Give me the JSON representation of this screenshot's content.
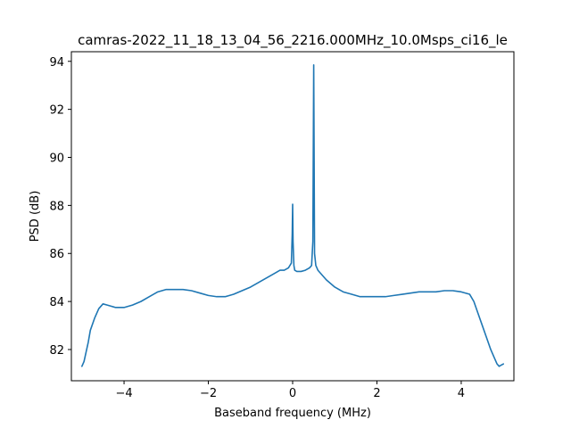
{
  "chart_data": {
    "type": "line",
    "title": "camras-2022_11_18_13_04_56_2216.000MHz_10.0Msps_ci16_le",
    "xlabel": "Baseband frequency (MHz)",
    "ylabel": "PSD (dB)",
    "xlim": [
      -5.25,
      5.25
    ],
    "ylim": [
      80.7,
      94.4
    ],
    "xticks": [
      -4,
      -2,
      0,
      2,
      4
    ],
    "xtick_labels": [
      "−4",
      "−2",
      "0",
      "2",
      "4"
    ],
    "yticks": [
      82,
      84,
      86,
      88,
      90,
      92,
      94
    ],
    "ytick_labels": [
      "82",
      "84",
      "86",
      "88",
      "90",
      "92",
      "94"
    ],
    "grid": false,
    "series": [
      {
        "color": "#1f77b4",
        "x": [
          -5.0,
          -4.95,
          -4.9,
          -4.85,
          -4.8,
          -4.7,
          -4.6,
          -4.5,
          -4.4,
          -4.3,
          -4.2,
          -4.1,
          -4.0,
          -3.9,
          -3.8,
          -3.6,
          -3.4,
          -3.2,
          -3.0,
          -2.8,
          -2.6,
          -2.4,
          -2.2,
          -2.0,
          -1.8,
          -1.6,
          -1.4,
          -1.2,
          -1.0,
          -0.8,
          -0.6,
          -0.4,
          -0.3,
          -0.2,
          -0.1,
          -0.03,
          -0.01,
          0.0,
          0.01,
          0.03,
          0.05,
          0.1,
          0.2,
          0.3,
          0.4,
          0.45,
          0.48,
          0.5,
          0.52,
          0.55,
          0.6,
          0.7,
          0.8,
          1.0,
          1.2,
          1.4,
          1.6,
          1.8,
          2.0,
          2.2,
          2.4,
          2.6,
          2.8,
          3.0,
          3.2,
          3.4,
          3.6,
          3.8,
          4.0,
          4.2,
          4.3,
          4.4,
          4.5,
          4.6,
          4.7,
          4.8,
          4.85,
          4.9,
          4.95,
          5.0
        ],
        "y": [
          81.3,
          81.5,
          81.9,
          82.3,
          82.8,
          83.3,
          83.7,
          83.9,
          83.85,
          83.8,
          83.75,
          83.75,
          83.75,
          83.8,
          83.85,
          84.0,
          84.2,
          84.4,
          84.5,
          84.5,
          84.5,
          84.45,
          84.35,
          84.25,
          84.2,
          84.2,
          84.3,
          84.45,
          84.6,
          84.8,
          85.0,
          85.2,
          85.3,
          85.3,
          85.4,
          85.6,
          86.8,
          88.05,
          86.5,
          85.5,
          85.3,
          85.25,
          85.25,
          85.3,
          85.4,
          85.5,
          86.5,
          93.85,
          86.0,
          85.5,
          85.3,
          85.1,
          84.9,
          84.6,
          84.4,
          84.3,
          84.2,
          84.2,
          84.2,
          84.2,
          84.25,
          84.3,
          84.35,
          84.4,
          84.4,
          84.4,
          84.45,
          84.45,
          84.4,
          84.3,
          84.0,
          83.5,
          83.0,
          82.5,
          82.0,
          81.6,
          81.4,
          81.3,
          81.35,
          81.4
        ]
      }
    ]
  }
}
